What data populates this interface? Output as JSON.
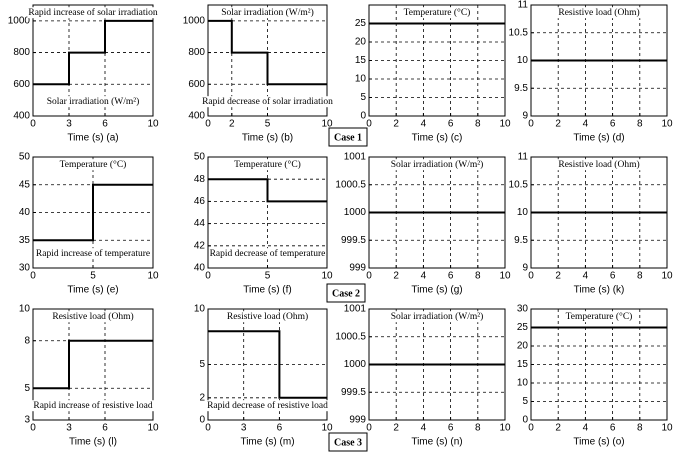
{
  "case_labels": [
    "Case 1",
    "Case 2",
    "Case 3"
  ],
  "chart_data": [
    {
      "type": "line",
      "xlabel": "Time (s) (a)",
      "annotations": [
        "Rapid increase of solar irradiation",
        "Solar irradiation (W/m²)"
      ],
      "x": [
        0,
        3,
        3,
        6,
        6,
        10
      ],
      "values": [
        600,
        600,
        800,
        800,
        1000,
        1000
      ],
      "color": "#000000",
      "xlim": [
        0,
        10
      ],
      "xticks": [
        0,
        3,
        6,
        10
      ],
      "ylim": [
        400,
        1100
      ],
      "yticks": [
        400,
        600,
        800,
        1000
      ],
      "grid": true
    },
    {
      "type": "line",
      "xlabel": "Time (s) (b)",
      "annotations": [
        "Solar irradiation (W/m²)",
        "Rapid decrease of solar irradiation"
      ],
      "x": [
        0,
        2,
        2,
        5,
        5,
        10
      ],
      "values": [
        1000,
        1000,
        800,
        800,
        600,
        600
      ],
      "color": "#000000",
      "xlim": [
        0,
        10
      ],
      "xticks": [
        0,
        2,
        5,
        10
      ],
      "ylim": [
        400,
        1100
      ],
      "yticks": [
        400,
        600,
        800,
        1000
      ],
      "grid": true
    },
    {
      "type": "line",
      "xlabel": "Time (s) (c)",
      "annotations": [
        "Temperature (°C)"
      ],
      "x": [
        0,
        10
      ],
      "values": [
        25,
        25
      ],
      "color": "#000000",
      "xlim": [
        0,
        10
      ],
      "xticks": [
        0,
        2,
        4,
        6,
        8,
        10
      ],
      "ylim": [
        0,
        30
      ],
      "yticks": [
        0,
        5,
        10,
        15,
        20,
        25
      ],
      "grid": true
    },
    {
      "type": "line",
      "xlabel": "Time (s) (d)",
      "annotations": [
        "Resistive load (Ohm)"
      ],
      "x": [
        0,
        10
      ],
      "values": [
        10,
        10
      ],
      "color": "#000000",
      "xlim": [
        0,
        10
      ],
      "xticks": [
        0,
        2,
        4,
        6,
        8,
        10
      ],
      "ylim": [
        9,
        11
      ],
      "yticks": [
        9,
        9.5,
        10,
        10.5,
        11
      ],
      "grid": true
    },
    {
      "type": "line",
      "xlabel": "Time (s) (e)",
      "annotations": [
        "Temperature (°C)",
        "Rapid increase of temperature"
      ],
      "x": [
        0,
        5,
        5,
        10
      ],
      "values": [
        35,
        35,
        45,
        45
      ],
      "color": "#000000",
      "xlim": [
        0,
        10
      ],
      "xticks": [
        0,
        5,
        10
      ],
      "ylim": [
        30,
        50
      ],
      "yticks": [
        30,
        35,
        40,
        45,
        50
      ],
      "grid": true
    },
    {
      "type": "line",
      "xlabel": "Time (s) (f)",
      "annotations": [
        "Temperature (°C)",
        "Rapid decrease of temperature"
      ],
      "x": [
        0,
        5,
        5,
        10
      ],
      "values": [
        48,
        48,
        46,
        46
      ],
      "color": "#000000",
      "xlim": [
        0,
        10
      ],
      "xticks": [
        0,
        5,
        10
      ],
      "ylim": [
        40,
        50
      ],
      "yticks": [
        40,
        42,
        44,
        46,
        48,
        50
      ],
      "grid": true
    },
    {
      "type": "line",
      "xlabel": "Time (s) (g)",
      "annotations": [
        "Solar irradiation (W/m²)"
      ],
      "x": [
        0,
        10
      ],
      "values": [
        1000,
        1000
      ],
      "color": "#000000",
      "xlim": [
        0,
        10
      ],
      "xticks": [
        0,
        2,
        4,
        6,
        8,
        10
      ],
      "ylim": [
        999,
        1001
      ],
      "yticks": [
        999,
        999.5,
        1000,
        1000.5,
        1001
      ],
      "grid": true
    },
    {
      "type": "line",
      "xlabel": "Time (s) (k)",
      "annotations": [
        "Resistive load (Ohm)"
      ],
      "x": [
        0,
        10
      ],
      "values": [
        10,
        10
      ],
      "color": "#000000",
      "xlim": [
        0,
        10
      ],
      "xticks": [
        0,
        2,
        4,
        6,
        8,
        10
      ],
      "ylim": [
        9,
        11
      ],
      "yticks": [
        9,
        9.5,
        10,
        10.5,
        11
      ],
      "grid": true
    },
    {
      "type": "line",
      "xlabel": "Time (s) (l)",
      "annotations": [
        "Resistive load (Ohm)",
        "Rapid increase of resistive load"
      ],
      "x": [
        0,
        3,
        3,
        10
      ],
      "values": [
        5,
        5,
        8,
        8
      ],
      "color": "#000000",
      "xlim": [
        0,
        10
      ],
      "xticks": [
        0,
        3,
        6,
        10
      ],
      "ylim": [
        3,
        10
      ],
      "yticks": [
        3,
        5,
        8,
        10
      ],
      "grid": true
    },
    {
      "type": "line",
      "xlabel": "Time (s) (m)",
      "annotations": [
        "Resistive load (Ohm)",
        "Rapid decrease of resistive load"
      ],
      "x": [
        0,
        6,
        6,
        10
      ],
      "values": [
        8,
        8,
        2,
        2
      ],
      "color": "#000000",
      "xlim": [
        0,
        10
      ],
      "xticks": [
        0,
        3,
        6,
        10
      ],
      "ylim": [
        0,
        10
      ],
      "yticks": [
        0,
        2,
        5,
        10
      ],
      "grid": true
    },
    {
      "type": "line",
      "xlabel": "Time (s) (n)",
      "annotations": [
        "Solar irradiation (W/m²)"
      ],
      "x": [
        0,
        10
      ],
      "values": [
        1000,
        1000
      ],
      "color": "#000000",
      "xlim": [
        0,
        10
      ],
      "xticks": [
        0,
        2,
        4,
        6,
        8,
        10
      ],
      "ylim": [
        999,
        1001
      ],
      "yticks": [
        999,
        999.5,
        1000,
        1000.5,
        1001
      ],
      "grid": true
    },
    {
      "type": "line",
      "xlabel": "Time (s) (o)",
      "annotations": [
        "Temperature (°C)"
      ],
      "x": [
        0,
        10
      ],
      "values": [
        25,
        25
      ],
      "color": "#000000",
      "xlim": [
        0,
        10
      ],
      "xticks": [
        0,
        2,
        4,
        6,
        8,
        10
      ],
      "ylim": [
        0,
        30
      ],
      "yticks": [
        0,
        5,
        10,
        15,
        20,
        25,
        30
      ],
      "grid": true
    }
  ]
}
